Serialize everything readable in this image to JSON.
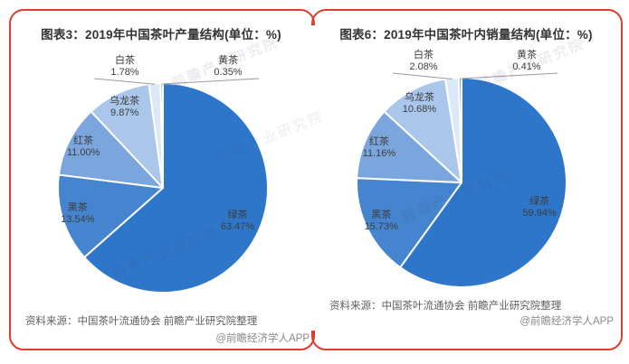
{
  "page": {
    "background": "#ffffff",
    "card_border_color": "#e23c2e",
    "watermark_text": "前瞻产业研究院"
  },
  "chart_data": [
    {
      "type": "pie",
      "title": "图表3：2019年中国茶叶产量结构(单位：%)",
      "unit": "%",
      "start_angle_deg": 0,
      "direction": "clockwise",
      "slices": [
        {
          "name": "绿茶",
          "value": 63.47,
          "pct_label": "63.47%",
          "color": "#2E76C9",
          "label_pos": "inside"
        },
        {
          "name": "黑茶",
          "value": 13.54,
          "pct_label": "13.54%",
          "color": "#4584CF",
          "label_pos": "edge"
        },
        {
          "name": "红茶",
          "value": 11.0,
          "pct_label": "11.00%",
          "color": "#7BA6DD",
          "label_pos": "edge"
        },
        {
          "name": "乌龙茶",
          "value": 9.87,
          "pct_label": "9.87%",
          "color": "#AAC7EB",
          "label_pos": "edge"
        },
        {
          "name": "白茶",
          "value": 1.78,
          "pct_label": "1.78%",
          "color": "#DDE8F7",
          "label_pos": "callout-left"
        },
        {
          "name": "黄茶",
          "value": 0.35,
          "pct_label": "0.35%",
          "color": "#6196D7",
          "label_pos": "callout-right"
        }
      ],
      "source": "资料来源：中国茶叶流通协会 前瞻产业研究院整理",
      "credit": "@前瞻经济学人APP"
    },
    {
      "type": "pie",
      "title": "图表6：2019年中国茶叶内销量结构(单位：%)",
      "unit": "%",
      "start_angle_deg": 0,
      "direction": "clockwise",
      "slices": [
        {
          "name": "绿茶",
          "value": 59.94,
          "pct_label": "59.94%",
          "color": "#2E76C9",
          "label_pos": "inside"
        },
        {
          "name": "黑茶",
          "value": 15.73,
          "pct_label": "15.73%",
          "color": "#4584CF",
          "label_pos": "edge"
        },
        {
          "name": "红茶",
          "value": 11.16,
          "pct_label": "11.16%",
          "color": "#7BA6DD",
          "label_pos": "edge"
        },
        {
          "name": "乌龙茶",
          "value": 10.68,
          "pct_label": "10.68%",
          "color": "#AAC7EB",
          "label_pos": "edge"
        },
        {
          "name": "白茶",
          "value": 2.08,
          "pct_label": "2.08%",
          "color": "#DDE8F7",
          "label_pos": "callout-left"
        },
        {
          "name": "黄茶",
          "value": 0.41,
          "pct_label": "0.41%",
          "color": "#6196D7",
          "label_pos": "callout-right"
        }
      ],
      "source": "资料来源：中国茶叶流通协会 前瞻产业研究院整理",
      "credit": "@前瞻经济学人APP"
    }
  ]
}
